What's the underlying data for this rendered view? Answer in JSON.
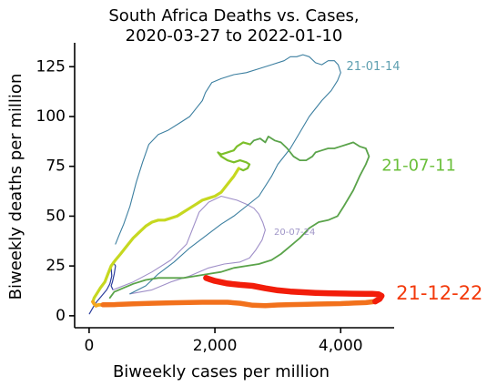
{
  "chart_data": {
    "type": "line",
    "title_lines": [
      "South Africa Deaths vs. Cases,",
      "2020-03-27 to 2022-01-10"
    ],
    "xlabel": "Biweekly cases per million",
    "ylabel": "Biweekly deaths per million",
    "xlim": [
      -230,
      4850
    ],
    "ylim": [
      -6,
      137
    ],
    "x_ticks": [
      0,
      2000,
      4000
    ],
    "x_tick_labels": [
      "0",
      "2,000",
      "4,000"
    ],
    "y_ticks": [
      0,
      25,
      50,
      75,
      100,
      125
    ],
    "y_tick_labels": [
      "0",
      "25",
      "50",
      "75",
      "100",
      "125"
    ],
    "grid": false,
    "series": [
      {
        "color": "#2c3e9c",
        "width": 1.2,
        "points": [
          [
            5,
            1
          ],
          [
            60,
            4
          ],
          [
            120,
            7
          ],
          [
            200,
            10
          ],
          [
            280,
            13
          ],
          [
            330,
            16
          ],
          [
            360,
            20
          ],
          [
            350,
            24
          ],
          [
            380,
            27
          ],
          [
            420,
            25
          ],
          [
            400,
            21
          ],
          [
            370,
            17
          ],
          [
            350,
            15
          ],
          [
            380,
            13
          ]
        ]
      },
      {
        "color": "#9f8fc8",
        "width": 1.1,
        "points": [
          [
            380,
            13
          ],
          [
            700,
            17
          ],
          [
            1000,
            22
          ],
          [
            1300,
            28
          ],
          [
            1550,
            36
          ],
          [
            1650,
            44
          ],
          [
            1750,
            52
          ],
          [
            1900,
            57
          ],
          [
            2100,
            60
          ],
          [
            2350,
            58
          ],
          [
            2500,
            56
          ],
          [
            2620,
            54
          ],
          [
            2700,
            51
          ],
          [
            2760,
            47
          ],
          [
            2800,
            43
          ],
          [
            2750,
            38
          ],
          [
            2650,
            33
          ],
          [
            2550,
            29
          ],
          [
            2400,
            27
          ],
          [
            2150,
            26
          ],
          [
            1900,
            24
          ],
          [
            1600,
            20
          ],
          [
            1300,
            17
          ],
          [
            1000,
            13
          ],
          [
            650,
            11
          ]
        ]
      },
      {
        "color": "#3c7fa0",
        "width": 1.1,
        "points": [
          [
            650,
            11
          ],
          [
            900,
            15
          ],
          [
            1100,
            21
          ],
          [
            1350,
            27
          ],
          [
            1600,
            34
          ],
          [
            1850,
            40
          ],
          [
            2100,
            46
          ],
          [
            2300,
            50
          ],
          [
            2500,
            55
          ],
          [
            2700,
            60
          ],
          [
            2900,
            70
          ],
          [
            3000,
            76
          ],
          [
            3200,
            84
          ],
          [
            3350,
            92
          ],
          [
            3500,
            100
          ],
          [
            3700,
            108
          ],
          [
            3850,
            113
          ],
          [
            3950,
            118
          ],
          [
            4000,
            122
          ],
          [
            3960,
            126
          ],
          [
            3900,
            128
          ],
          [
            3800,
            128
          ],
          [
            3700,
            126
          ],
          [
            3600,
            127
          ],
          [
            3500,
            130
          ],
          [
            3400,
            131
          ],
          [
            3300,
            130
          ],
          [
            3200,
            130
          ],
          [
            3100,
            128
          ],
          [
            2900,
            126
          ],
          [
            2700,
            124
          ],
          [
            2500,
            122
          ],
          [
            2300,
            121
          ],
          [
            2100,
            119
          ],
          [
            1950,
            117
          ],
          [
            1850,
            112
          ],
          [
            1800,
            108
          ],
          [
            1700,
            104
          ],
          [
            1600,
            100
          ],
          [
            1450,
            97
          ],
          [
            1250,
            93
          ],
          [
            1100,
            91
          ],
          [
            950,
            86
          ],
          [
            850,
            77
          ],
          [
            750,
            67
          ],
          [
            650,
            55
          ],
          [
            550,
            46
          ],
          [
            470,
            40
          ],
          [
            420,
            36
          ]
        ]
      },
      {
        "color": "#5aa34a",
        "width": 1.8,
        "points": [
          [
            330,
            9
          ],
          [
            400,
            12
          ],
          [
            550,
            14
          ],
          [
            700,
            16
          ],
          [
            900,
            18
          ],
          [
            1100,
            19
          ],
          [
            1300,
            19
          ],
          [
            1500,
            19
          ],
          [
            1700,
            20
          ],
          [
            1900,
            21
          ],
          [
            2100,
            22
          ],
          [
            2300,
            24
          ],
          [
            2500,
            25
          ],
          [
            2700,
            26
          ],
          [
            2900,
            28
          ],
          [
            3050,
            31
          ],
          [
            3200,
            35
          ],
          [
            3350,
            39
          ],
          [
            3500,
            44
          ],
          [
            3650,
            47
          ],
          [
            3800,
            48
          ],
          [
            3950,
            50
          ],
          [
            4050,
            55
          ],
          [
            4200,
            63
          ],
          [
            4300,
            70
          ],
          [
            4400,
            76
          ],
          [
            4450,
            80
          ],
          [
            4400,
            84
          ],
          [
            4300,
            85
          ],
          [
            4200,
            87
          ],
          [
            4100,
            86
          ],
          [
            4000,
            85
          ],
          [
            3900,
            84
          ],
          [
            3800,
            84
          ],
          [
            3700,
            83
          ],
          [
            3600,
            82
          ],
          [
            3550,
            80
          ],
          [
            3450,
            78
          ],
          [
            3350,
            78
          ],
          [
            3250,
            80
          ],
          [
            3150,
            84
          ],
          [
            3050,
            87
          ],
          [
            2950,
            88
          ],
          [
            2850,
            90
          ],
          [
            2800,
            87
          ],
          [
            2720,
            89
          ],
          [
            2620,
            88
          ],
          [
            2560,
            86
          ]
        ]
      },
      {
        "color": "#7cbf2a",
        "width": 2.2,
        "points": [
          [
            2560,
            86
          ],
          [
            2450,
            87
          ],
          [
            2350,
            85
          ],
          [
            2300,
            83
          ],
          [
            2200,
            82
          ],
          [
            2100,
            81
          ],
          [
            2050,
            82
          ],
          [
            2100,
            80
          ],
          [
            2200,
            78
          ],
          [
            2300,
            77
          ],
          [
            2400,
            78
          ],
          [
            2500,
            77
          ],
          [
            2550,
            76
          ],
          [
            2520,
            74
          ],
          [
            2450,
            73
          ],
          [
            2380,
            74
          ]
        ]
      },
      {
        "color": "#c6d820",
        "width": 3.2,
        "points": [
          [
            2380,
            74
          ],
          [
            2300,
            70
          ],
          [
            2200,
            66
          ],
          [
            2100,
            62
          ],
          [
            2000,
            60
          ],
          [
            1900,
            59
          ],
          [
            1800,
            58
          ],
          [
            1700,
            56
          ],
          [
            1600,
            54
          ],
          [
            1500,
            52
          ],
          [
            1400,
            50
          ],
          [
            1300,
            49
          ],
          [
            1200,
            48
          ],
          [
            1100,
            48
          ],
          [
            1000,
            47
          ],
          [
            900,
            45
          ],
          [
            800,
            42
          ],
          [
            700,
            39
          ],
          [
            600,
            35
          ],
          [
            500,
            31
          ],
          [
            420,
            28
          ],
          [
            350,
            25
          ],
          [
            300,
            21
          ],
          [
            250,
            17
          ],
          [
            180,
            14
          ],
          [
            120,
            11
          ],
          [
            80,
            9
          ],
          [
            60,
            7
          ]
        ]
      },
      {
        "color": "#f5a81e",
        "width": 3.8,
        "points": [
          [
            60,
            7
          ],
          [
            80,
            6
          ],
          [
            110,
            5
          ],
          [
            150,
            5.5
          ],
          [
            220,
            5.5
          ]
        ]
      },
      {
        "color": "#f2711c",
        "width": 5.5,
        "points": [
          [
            220,
            5.5
          ],
          [
            400,
            5.6
          ],
          [
            700,
            6
          ],
          [
            1000,
            6.3
          ],
          [
            1300,
            6.5
          ],
          [
            1600,
            6.7
          ],
          [
            1800,
            6.8
          ],
          [
            2000,
            6.8
          ],
          [
            2200,
            6.8
          ],
          [
            2400,
            6.3
          ],
          [
            2600,
            5.3
          ],
          [
            2800,
            5.1
          ],
          [
            3000,
            5.4
          ],
          [
            3200,
            5.6
          ],
          [
            3400,
            5.7
          ],
          [
            3600,
            5.9
          ],
          [
            3800,
            6
          ],
          [
            4000,
            6.1
          ],
          [
            4200,
            6.4
          ],
          [
            4400,
            6.6
          ],
          [
            4550,
            7.2
          ]
        ]
      },
      {
        "color": "#f21d0a",
        "width": 6.5,
        "points": [
          [
            4550,
            7.2
          ],
          [
            4620,
            8.5
          ],
          [
            4650,
            10
          ],
          [
            4600,
            10.8
          ],
          [
            4500,
            11
          ],
          [
            4400,
            11
          ],
          [
            4200,
            11.1
          ],
          [
            4000,
            11.2
          ],
          [
            3800,
            11.3
          ],
          [
            3600,
            11.5
          ],
          [
            3400,
            11.8
          ],
          [
            3200,
            12.2
          ],
          [
            3000,
            12.8
          ],
          [
            2800,
            13.8
          ],
          [
            2600,
            15
          ],
          [
            2400,
            15.5
          ],
          [
            2200,
            16.2
          ],
          [
            2000,
            17.5
          ],
          [
            1900,
            18.5
          ],
          [
            1860,
            19
          ]
        ]
      }
    ],
    "annotations": [
      {
        "text": "21-01-14",
        "x": 4090,
        "y": 125,
        "color": "#5e9fb0",
        "size": 13
      },
      {
        "text": "21-07-11",
        "x": 4650,
        "y": 75,
        "color": "#6abf3a",
        "size": 18
      },
      {
        "text": "20-07-24",
        "x": 2940,
        "y": 42,
        "color": "#a096c8",
        "size": 10
      },
      {
        "text": "21-12-22",
        "x": 4880,
        "y": 11,
        "color": "#f33a0c",
        "size": 21
      }
    ]
  }
}
